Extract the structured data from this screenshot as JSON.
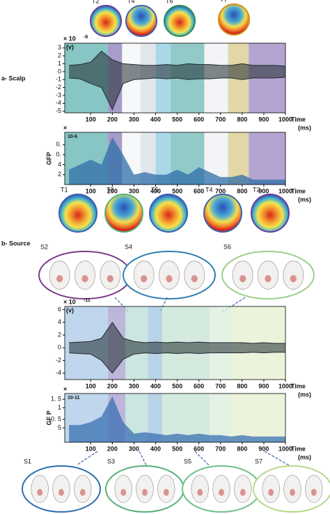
{
  "figure": {
    "scalp": {
      "label": "a- Scalp",
      "top_maps": [
        "T2",
        "T4",
        "T6",
        "T7"
      ],
      "bottom_maps": [
        "T1",
        "T3",
        "T5",
        "T4",
        "T2"
      ],
      "eeg": {
        "type": "line",
        "multiplier": "× 10",
        "exponent": "-6",
        "unit": "(v)",
        "xlabel": "Time",
        "xunit": "(ms)",
        "x": [
          0,
          50,
          100,
          150,
          200,
          250,
          300,
          350,
          400,
          450,
          500,
          550,
          600,
          650,
          700,
          750,
          800,
          850,
          900,
          950,
          1000
        ],
        "series": [
          {
            "color": "#1e2a30",
            "values": [
              0.8,
              0.9,
              1.2,
              2.6,
              1.5,
              1.0,
              0.9,
              0.8,
              0.8,
              0.9,
              0.8,
              1.0,
              0.9,
              0.9,
              0.8,
              0.8,
              1.0,
              0.8,
              0.8,
              0.8,
              0.7
            ]
          },
          {
            "color": "#1e2a30",
            "values": [
              -0.8,
              -0.9,
              -1.5,
              -2,
              -4.8,
              -1.5,
              -1.0,
              -0.9,
              -0.8,
              -0.9,
              -0.8,
              -1.0,
              -0.9,
              -0.9,
              -0.8,
              -0.8,
              -1.0,
              -0.8,
              -0.8,
              -0.8,
              -0.7
            ]
          }
        ],
        "xlim": [
          -20,
          1000
        ],
        "xticks": [
          100,
          200,
          300,
          400,
          500,
          600,
          700,
          800,
          900,
          1000
        ],
        "ylim": [
          -5.2,
          3.6
        ],
        "yticks": [
          -5,
          -4,
          -3,
          -2,
          -1,
          0,
          1,
          2,
          3
        ],
        "bands": [
          {
            "start": -20,
            "end": 180,
            "color": "#5fb3b0"
          },
          {
            "start": 180,
            "end": 245,
            "color": "#8b7bb8"
          },
          {
            "start": 245,
            "end": 330,
            "color": "#f4f6f8"
          },
          {
            "start": 330,
            "end": 400,
            "color": "#d8dfe8"
          },
          {
            "start": 400,
            "end": 470,
            "color": "#8fcbe0"
          },
          {
            "start": 470,
            "end": 625,
            "color": "#6cb8b5"
          },
          {
            "start": 625,
            "end": 735,
            "color": "#eef0f4"
          },
          {
            "start": 735,
            "end": 830,
            "color": "#d9c98a"
          },
          {
            "start": 830,
            "end": 1000,
            "color": "#9b86c2"
          }
        ]
      },
      "gfp": {
        "type": "area",
        "ylabel": "GFP",
        "multiplier": "×",
        "exponent": "10-6",
        "xlabel": "Time",
        "xunit": "(ms)",
        "color": "#2f6fa8",
        "x": [
          0,
          50,
          100,
          150,
          200,
          250,
          300,
          350,
          400,
          450,
          500,
          550,
          600,
          650,
          700,
          750,
          800,
          850,
          900,
          950,
          1000
        ],
        "values": [
          3,
          4,
          5,
          4,
          9.5,
          6,
          2,
          2.5,
          2,
          2,
          3,
          2,
          3.5,
          2.5,
          1.5,
          1.5,
          2,
          1,
          1,
          1,
          1
        ],
        "xlim": [
          -20,
          1000
        ],
        "xticks": [
          100,
          200,
          300,
          400,
          500,
          600,
          700,
          800,
          900,
          1000
        ],
        "ylim": [
          0,
          10.5
        ],
        "yticks": [
          2,
          4,
          {
            "value": 6,
            "label": "0."
          },
          {
            "value": 8,
            "label": "0."
          }
        ],
        "bands": [
          {
            "start": -20,
            "end": 180,
            "color": "#5fb3b0"
          },
          {
            "start": 180,
            "end": 245,
            "color": "#8b7bb8"
          },
          {
            "start": 245,
            "end": 330,
            "color": "#f4f6f8"
          },
          {
            "start": 330,
            "end": 400,
            "color": "#d8dfe8"
          },
          {
            "start": 400,
            "end": 470,
            "color": "#8fcbe0"
          },
          {
            "start": 470,
            "end": 625,
            "color": "#6cb8b5"
          },
          {
            "start": 625,
            "end": 735,
            "color": "#eef0f4"
          },
          {
            "start": 735,
            "end": 830,
            "color": "#d9c98a"
          },
          {
            "start": 830,
            "end": 1000,
            "color": "#9b86c2"
          }
        ]
      }
    },
    "source": {
      "label": "b- Source",
      "top_maps": [
        "S2",
        "S4",
        "S6"
      ],
      "bottom_maps": [
        "S1",
        "S3",
        "S5",
        "S7"
      ],
      "eeg": {
        "type": "line",
        "multiplier": "× 10",
        "exponent": "-11",
        "unit": "(v)",
        "xlabel": "Time",
        "xunit": "(ms)",
        "x": [
          0,
          50,
          100,
          150,
          200,
          250,
          300,
          350,
          400,
          450,
          500,
          550,
          600,
          650,
          700,
          750,
          800,
          850,
          900,
          950,
          1000
        ],
        "series": [
          {
            "color": "#1e2a30",
            "values": [
              0.8,
              0.9,
              1,
              1.5,
              4,
              1.5,
              1,
              0.8,
              0.9,
              0.8,
              0.9,
              0.8,
              0.9,
              0.8,
              0.8,
              0.8,
              0.8,
              0.7,
              0.8,
              0.7,
              0.7
            ]
          },
          {
            "color": "#1e2a30",
            "values": [
              -0.8,
              -0.9,
              -1,
              -2,
              -4,
              -1.8,
              -1,
              -0.8,
              -0.9,
              -0.8,
              -0.9,
              -0.8,
              -0.9,
              -0.8,
              -0.8,
              -0.8,
              -0.8,
              -0.7,
              -0.8,
              -0.7,
              -0.7
            ]
          }
        ],
        "xlim": [
          -20,
          1000
        ],
        "xticks": [
          100,
          200,
          300,
          400,
          500,
          600,
          700,
          800,
          900,
          1000
        ],
        "ylim": [
          -5,
          6.5
        ],
        "yticks": [
          -4,
          -2,
          0,
          2,
          4,
          6
        ],
        "bands": [
          {
            "start": -20,
            "end": 180,
            "color": "#a9c8e6"
          },
          {
            "start": 180,
            "end": 260,
            "color": "#a89ccd"
          },
          {
            "start": 260,
            "end": 365,
            "color": "#b9dcd6"
          },
          {
            "start": 365,
            "end": 430,
            "color": "#9fc4e0"
          },
          {
            "start": 430,
            "end": 650,
            "color": "#c5e3d3"
          },
          {
            "start": 650,
            "end": 750,
            "color": "#d9eedc"
          },
          {
            "start": 750,
            "end": 1000,
            "color": "#e6efcf"
          }
        ]
      },
      "gfp": {
        "type": "area",
        "ylabel": "GF P",
        "multiplier": "×",
        "exponent": "10-11",
        "xlabel": "Time",
        "xunit": "(ms)",
        "color": "#3a70b3",
        "x": [
          0,
          50,
          100,
          150,
          200,
          250,
          300,
          350,
          400,
          450,
          500,
          550,
          600,
          650,
          700,
          750,
          800,
          850,
          900,
          950,
          1000
        ],
        "values": [
          6,
          6,
          7,
          9,
          16,
          7,
          3,
          3.5,
          3,
          2.5,
          3,
          2.5,
          3,
          2.5,
          2.5,
          2,
          2.5,
          2,
          2,
          2,
          2
        ],
        "xlim": [
          -20,
          1000
        ],
        "xticks": [
          100,
          200,
          300,
          400,
          500,
          600,
          700,
          800,
          900,
          1000
        ],
        "ylim": [
          0,
          17
        ],
        "yticks": [
          5,
          {
            "value": 8,
            "label": "0. 5"
          },
          {
            "value": 12,
            "label": "1"
          },
          {
            "value": 15,
            "label": "1. 5"
          }
        ],
        "bands": [
          {
            "start": -20,
            "end": 180,
            "color": "#a9c8e6"
          },
          {
            "start": 180,
            "end": 260,
            "color": "#a89ccd"
          },
          {
            "start": 260,
            "end": 365,
            "color": "#b9dcd6"
          },
          {
            "start": 365,
            "end": 430,
            "color": "#9fc4e0"
          },
          {
            "start": 430,
            "end": 650,
            "color": "#c5e3d3"
          },
          {
            "start": 650,
            "end": 750,
            "color": "#d9eedc"
          },
          {
            "start": 750,
            "end": 1000,
            "color": "#e6efcf"
          }
        ]
      }
    }
  }
}
